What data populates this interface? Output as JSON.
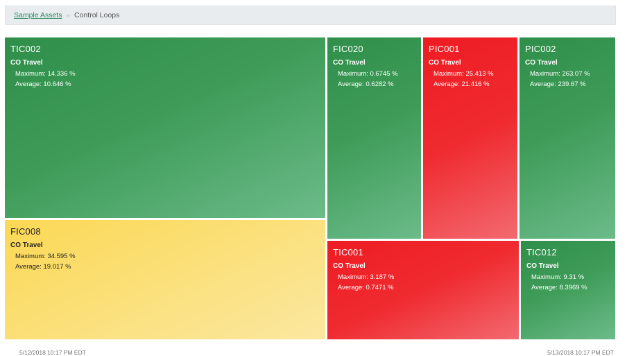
{
  "breadcrumb": {
    "root": "Sample Assets",
    "separator": "»",
    "current": "Control Loops"
  },
  "metric_label": "CO Travel",
  "tiles": [
    {
      "name": "TIC002",
      "metric": "CO Travel",
      "maximum": "Maximum: 14.336 %",
      "average": "Average: 10.646 %",
      "status": "green"
    },
    {
      "name": "FIC008",
      "metric": "CO Travel",
      "maximum": "Maximum: 34.595 %",
      "average": "Average: 19.017 %",
      "status": "yellow"
    },
    {
      "name": "FIC020",
      "metric": "CO Travel",
      "maximum": "Maximum: 0.6745 %",
      "average": "Average: 0.6282 %",
      "status": "green"
    },
    {
      "name": "PIC001",
      "metric": "CO Travel",
      "maximum": "Maximum: 25.413 %",
      "average": "Average: 21.416 %",
      "status": "red"
    },
    {
      "name": "PIC002",
      "metric": "CO Travel",
      "maximum": "Maximum: 263.07 %",
      "average": "Average: 239.67 %",
      "status": "green"
    },
    {
      "name": "TIC001",
      "metric": "CO Travel",
      "maximum": "Maximum: 3.187 %",
      "average": "Average: 0.7471 %",
      "status": "red"
    },
    {
      "name": "TIC012",
      "metric": "CO Travel",
      "maximum": "Maximum: 9.31 %",
      "average": "Average: 8.3969 %",
      "status": "green"
    }
  ],
  "time_range": {
    "start": "5/12/2018 10:17 PM EDT",
    "end": "5/13/2018 10:17 PM EDT"
  },
  "colors": {
    "green": "#3e9c58",
    "red": "#ef2b30",
    "yellow": "#fbd854"
  }
}
